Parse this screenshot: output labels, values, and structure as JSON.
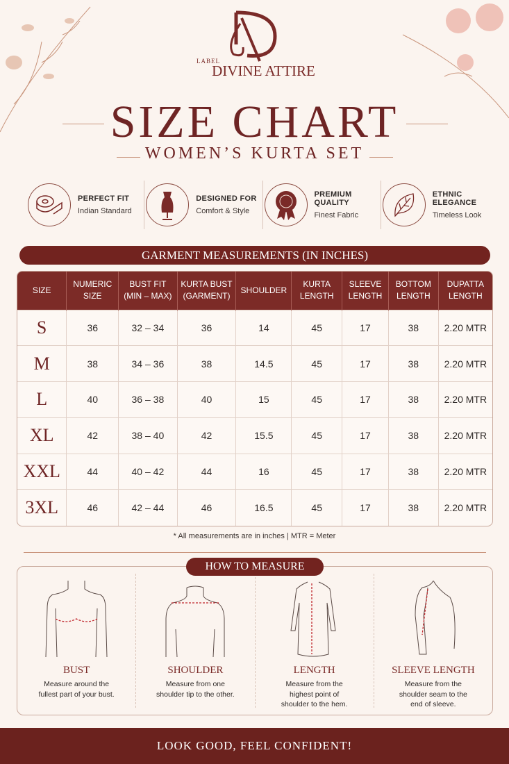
{
  "brand": {
    "logo_letters": "DA",
    "label": "LABEL",
    "name": "DIVINE ATTIRE"
  },
  "title": "SIZE CHART",
  "subtitle": "WOMEN’S KURTA SET",
  "features": [
    {
      "icon": "measuring-tape-icon",
      "title": "PERFECT FIT",
      "subtitle": "Indian Standard"
    },
    {
      "icon": "dress-form-icon",
      "title": "DESIGNED FOR",
      "subtitle": "Comfort & Style"
    },
    {
      "icon": "quality-badge-icon",
      "title": "PREMIUM QUALITY",
      "subtitle": "Finest Fabric"
    },
    {
      "icon": "leaf-icon",
      "title": "ETHNIC ELEGANCE",
      "subtitle": "Timeless Look"
    }
  ],
  "table": {
    "banner": "GARMENT MEASUREMENTS (IN INCHES)",
    "headers": [
      [
        "SIZE"
      ],
      [
        "NUMERIC",
        "SIZE"
      ],
      [
        "BUST FIT",
        "(MIN – MAX)"
      ],
      [
        "KURTA BUST",
        "(GARMENT)"
      ],
      [
        "SHOULDER"
      ],
      [
        "KURTA",
        "LENGTH"
      ],
      [
        "SLEEVE",
        "LENGTH"
      ],
      [
        "BOTTOM",
        "LENGTH"
      ],
      [
        "DUPATTA",
        "LENGTH"
      ]
    ],
    "rows": [
      [
        "S",
        "36",
        "32 – 34",
        "36",
        "14",
        "45",
        "17",
        "38",
        "2.20 MTR"
      ],
      [
        "M",
        "38",
        "34 – 36",
        "38",
        "14.5",
        "45",
        "17",
        "38",
        "2.20 MTR"
      ],
      [
        "L",
        "40",
        "36 – 38",
        "40",
        "15",
        "45",
        "17",
        "38",
        "2.20 MTR"
      ],
      [
        "XL",
        "42",
        "38 – 40",
        "42",
        "15.5",
        "45",
        "17",
        "38",
        "2.20 MTR"
      ],
      [
        "XXL",
        "44",
        "40 – 42",
        "44",
        "16",
        "45",
        "17",
        "38",
        "2.20 MTR"
      ],
      [
        "3XL",
        "46",
        "42 – 44",
        "46",
        "16.5",
        "45",
        "17",
        "38",
        "2.20 MTR"
      ]
    ],
    "note": "* All measurements are in inches  |  MTR = Meter"
  },
  "how_to_measure": {
    "title": "HOW TO MEASURE",
    "items": [
      {
        "title": "BUST",
        "text": "Measure around the fullest part of your bust."
      },
      {
        "title": "SHOULDER",
        "text": "Measure from one shoulder tip to the other."
      },
      {
        "title": "LENGTH",
        "text": "Measure from the highest point of shoulder to the hem."
      },
      {
        "title": "SLEEVE LENGTH",
        "text": "Measure from the shoulder seam to the end of sleeve."
      }
    ]
  },
  "footer": "LOOK GOOD, FEEL CONFIDENT!",
  "colors": {
    "primary": "#72231f",
    "background": "#fbf4ef",
    "measure_line": "#c0262c"
  }
}
